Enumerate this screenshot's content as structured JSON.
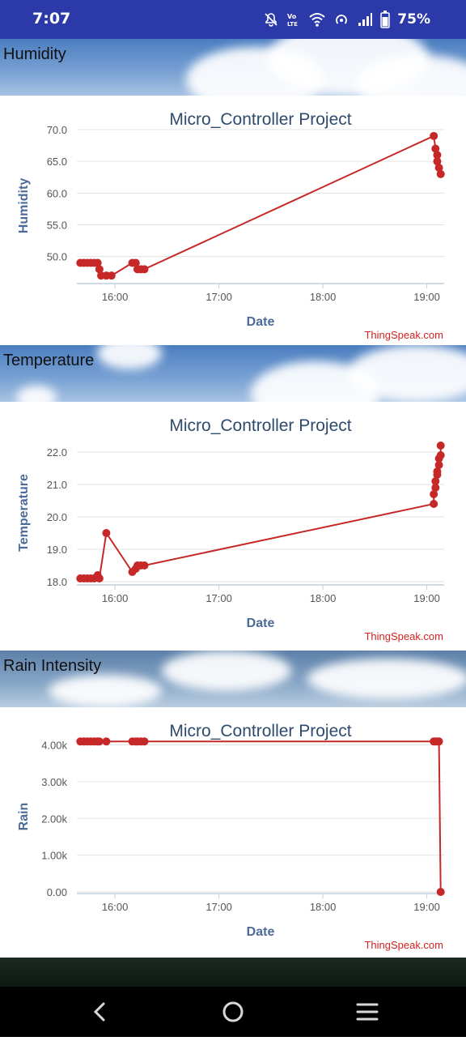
{
  "status_bar": {
    "time": "7:07",
    "battery": "75%",
    "icons": [
      "mute-icon",
      "volte-icon",
      "wifi-icon",
      "hotspot-icon",
      "signal-icon",
      "battery-icon"
    ]
  },
  "sections": [
    {
      "label": "Humidity"
    },
    {
      "label": "Temperature"
    },
    {
      "label": "Rain Intensity"
    }
  ],
  "chart_data": [
    {
      "type": "line",
      "title": "Micro_Controller Project",
      "xlabel": "Date",
      "ylabel": "Humidity",
      "credit": "ThingSpeak.com",
      "x_ticks": [
        "16:00",
        "17:00",
        "18:00",
        "19:00"
      ],
      "y_ticks": [
        "50.0",
        "55.0",
        "60.0",
        "65.0",
        "70.0"
      ],
      "ylim": [
        46,
        70
      ],
      "color": "#c62828",
      "points": [
        [
          "15:40",
          49
        ],
        [
          "15:42",
          49
        ],
        [
          "15:44",
          49
        ],
        [
          "15:46",
          49
        ],
        [
          "15:48",
          49
        ],
        [
          "15:50",
          49
        ],
        [
          "15:51",
          48
        ],
        [
          "15:52",
          47
        ],
        [
          "15:55",
          47
        ],
        [
          "15:58",
          47
        ],
        [
          "16:10",
          49
        ],
        [
          "16:12",
          49
        ],
        [
          "16:13",
          48
        ],
        [
          "16:15",
          48
        ],
        [
          "16:17",
          48
        ],
        [
          "19:04",
          69
        ],
        [
          "19:05",
          67
        ],
        [
          "19:06",
          66
        ],
        [
          "19:06",
          65
        ],
        [
          "19:07",
          64
        ],
        [
          "19:08",
          63
        ]
      ]
    },
    {
      "type": "line",
      "title": "Micro_Controller Project",
      "xlabel": "Date",
      "ylabel": "Temperature",
      "credit": "ThingSpeak.com",
      "x_ticks": [
        "16:00",
        "17:00",
        "18:00",
        "19:00"
      ],
      "y_ticks": [
        "18.0",
        "19.0",
        "20.0",
        "21.0",
        "22.0"
      ],
      "ylim": [
        17.95,
        22.3
      ],
      "color": "#c62828",
      "points": [
        [
          "15:40",
          18.1
        ],
        [
          "15:42",
          18.1
        ],
        [
          "15:44",
          18.1
        ],
        [
          "15:46",
          18.1
        ],
        [
          "15:48",
          18.1
        ],
        [
          "15:50",
          18.2
        ],
        [
          "15:51",
          18.1
        ],
        [
          "15:55",
          19.5
        ],
        [
          "16:10",
          18.3
        ],
        [
          "16:12",
          18.4
        ],
        [
          "16:13",
          18.5
        ],
        [
          "16:15",
          18.5
        ],
        [
          "16:17",
          18.5
        ],
        [
          "19:04",
          20.4
        ],
        [
          "19:04",
          20.7
        ],
        [
          "19:05",
          20.9
        ],
        [
          "19:05",
          21.1
        ],
        [
          "19:06",
          21.3
        ],
        [
          "19:06",
          21.4
        ],
        [
          "19:07",
          21.6
        ],
        [
          "19:07",
          21.8
        ],
        [
          "19:08",
          21.9
        ],
        [
          "19:08",
          22.2
        ]
      ]
    },
    {
      "type": "line",
      "title": "Micro_Controller Project",
      "xlabel": "Date",
      "ylabel": "Rain",
      "credit": "ThingSpeak.com",
      "x_ticks": [
        "16:00",
        "17:00",
        "18:00",
        "19:00"
      ],
      "y_ticks": [
        "0.00",
        "1.00k",
        "2.00k",
        "3.00k",
        "4.00k"
      ],
      "ylim": [
        0,
        4100
      ],
      "color": "#c62828",
      "points": [
        [
          "15:40",
          4095
        ],
        [
          "15:42",
          4095
        ],
        [
          "15:44",
          4095
        ],
        [
          "15:46",
          4095
        ],
        [
          "15:48",
          4095
        ],
        [
          "15:50",
          4095
        ],
        [
          "15:51",
          4095
        ],
        [
          "15:55",
          4095
        ],
        [
          "16:10",
          4095
        ],
        [
          "16:12",
          4095
        ],
        [
          "16:13",
          4095
        ],
        [
          "16:15",
          4095
        ],
        [
          "16:17",
          4095
        ],
        [
          "19:04",
          4095
        ],
        [
          "19:05",
          4095
        ],
        [
          "19:06",
          4095
        ],
        [
          "19:07",
          4095
        ],
        [
          "19:08",
          0
        ]
      ]
    }
  ],
  "nav_bar": {
    "buttons": [
      "back-icon",
      "home-icon",
      "recents-icon"
    ]
  }
}
